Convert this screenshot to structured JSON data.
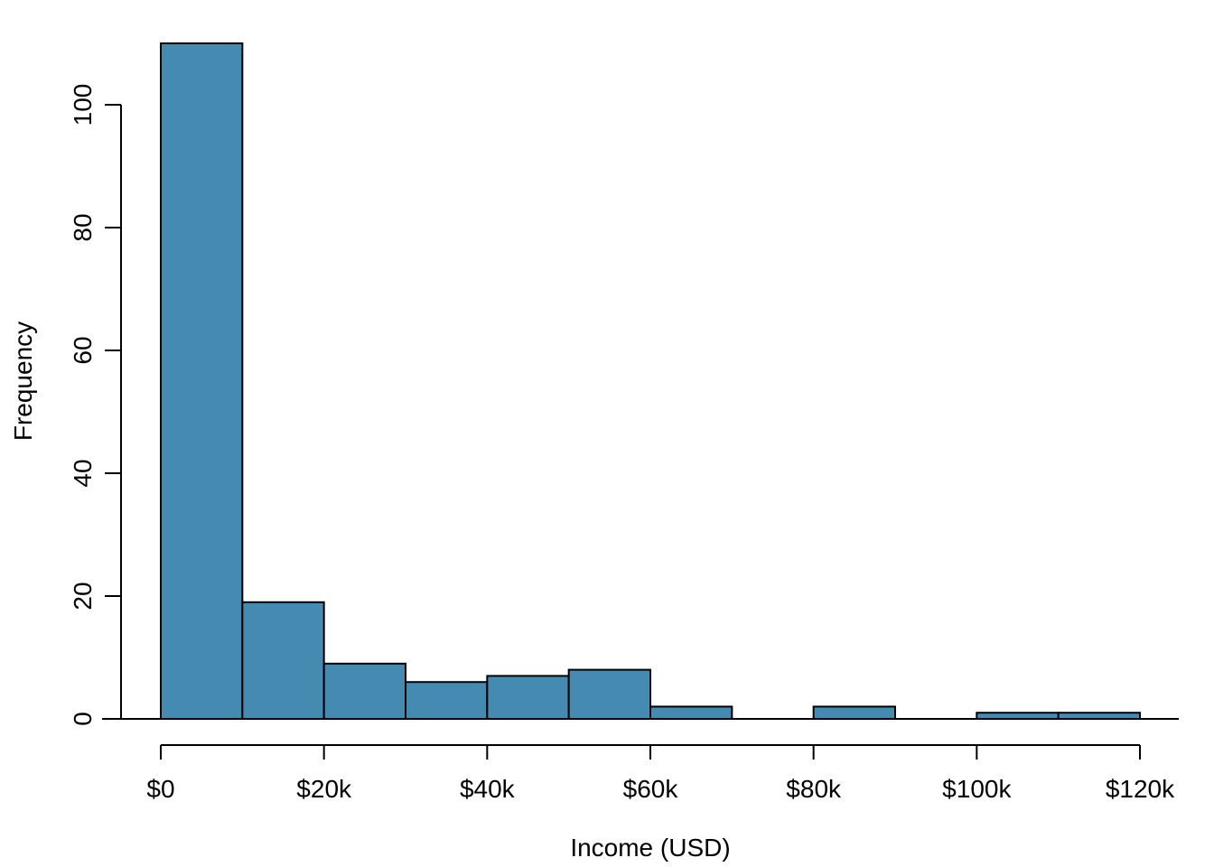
{
  "chart_data": {
    "type": "bar",
    "subtype": "histogram",
    "xlabel": "Income (USD)",
    "ylabel": "Frequency",
    "bins": [
      {
        "from": 0,
        "to": 10000,
        "count": 110
      },
      {
        "from": 10000,
        "to": 20000,
        "count": 19
      },
      {
        "from": 20000,
        "to": 30000,
        "count": 9
      },
      {
        "from": 30000,
        "to": 40000,
        "count": 6
      },
      {
        "from": 40000,
        "to": 50000,
        "count": 7
      },
      {
        "from": 50000,
        "to": 60000,
        "count": 8
      },
      {
        "from": 60000,
        "to": 70000,
        "count": 2
      },
      {
        "from": 70000,
        "to": 80000,
        "count": 0
      },
      {
        "from": 80000,
        "to": 90000,
        "count": 2
      },
      {
        "from": 90000,
        "to": 100000,
        "count": 0
      },
      {
        "from": 100000,
        "to": 110000,
        "count": 1
      },
      {
        "from": 110000,
        "to": 120000,
        "count": 1
      }
    ],
    "xlim": [
      0,
      120000
    ],
    "ylim": [
      0,
      110
    ],
    "x_ticks": [
      {
        "value": 0,
        "label": "$0"
      },
      {
        "value": 20000,
        "label": "$20k"
      },
      {
        "value": 40000,
        "label": "$40k"
      },
      {
        "value": 60000,
        "label": "$60k"
      },
      {
        "value": 80000,
        "label": "$80k"
      },
      {
        "value": 100000,
        "label": "$100k"
      },
      {
        "value": 120000,
        "label": "$120k"
      }
    ],
    "y_ticks": [
      {
        "value": 0,
        "label": "0"
      },
      {
        "value": 20,
        "label": "20"
      },
      {
        "value": 40,
        "label": "40"
      },
      {
        "value": 60,
        "label": "60"
      },
      {
        "value": 80,
        "label": "80"
      },
      {
        "value": 100,
        "label": "100"
      }
    ],
    "grid": false,
    "legend": "none",
    "colors": {
      "bar_fill": "#458AB0",
      "bar_stroke": "#000000",
      "axis": "#000000"
    }
  }
}
